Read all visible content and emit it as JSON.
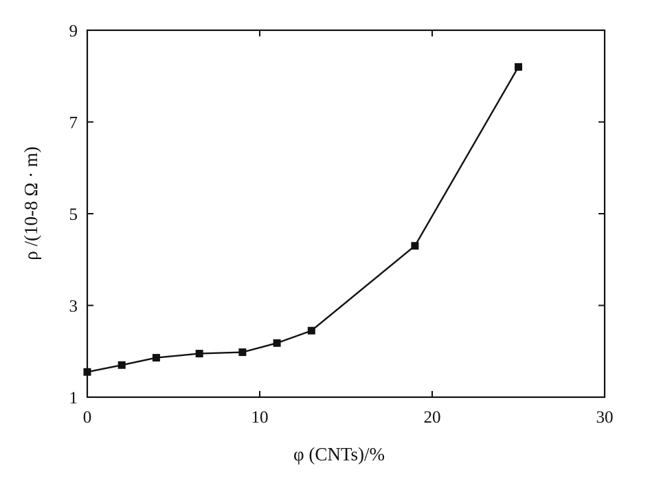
{
  "chart_data": {
    "type": "line",
    "xlabel": "φ (CNTs)/%",
    "ylabel": "ρ /(10-8 Ω · m)",
    "xlim": [
      0,
      30
    ],
    "ylim": [
      1,
      9
    ],
    "x_ticks": [
      0,
      10,
      20,
      30
    ],
    "y_ticks": [
      1,
      3,
      5,
      7,
      9
    ],
    "x_tick_labels": [
      "0",
      "10",
      "20",
      "30"
    ],
    "y_tick_labels": [
      "1",
      "3",
      "5",
      "7",
      "9"
    ],
    "grid": false,
    "legend": "none",
    "series": [
      {
        "marker": "square",
        "color": "#111111",
        "x": [
          0,
          2,
          4,
          6.5,
          9,
          11,
          13,
          19,
          25
        ],
        "y": [
          1.55,
          1.7,
          1.86,
          1.95,
          1.98,
          2.18,
          2.45,
          4.3,
          8.2
        ]
      }
    ]
  }
}
